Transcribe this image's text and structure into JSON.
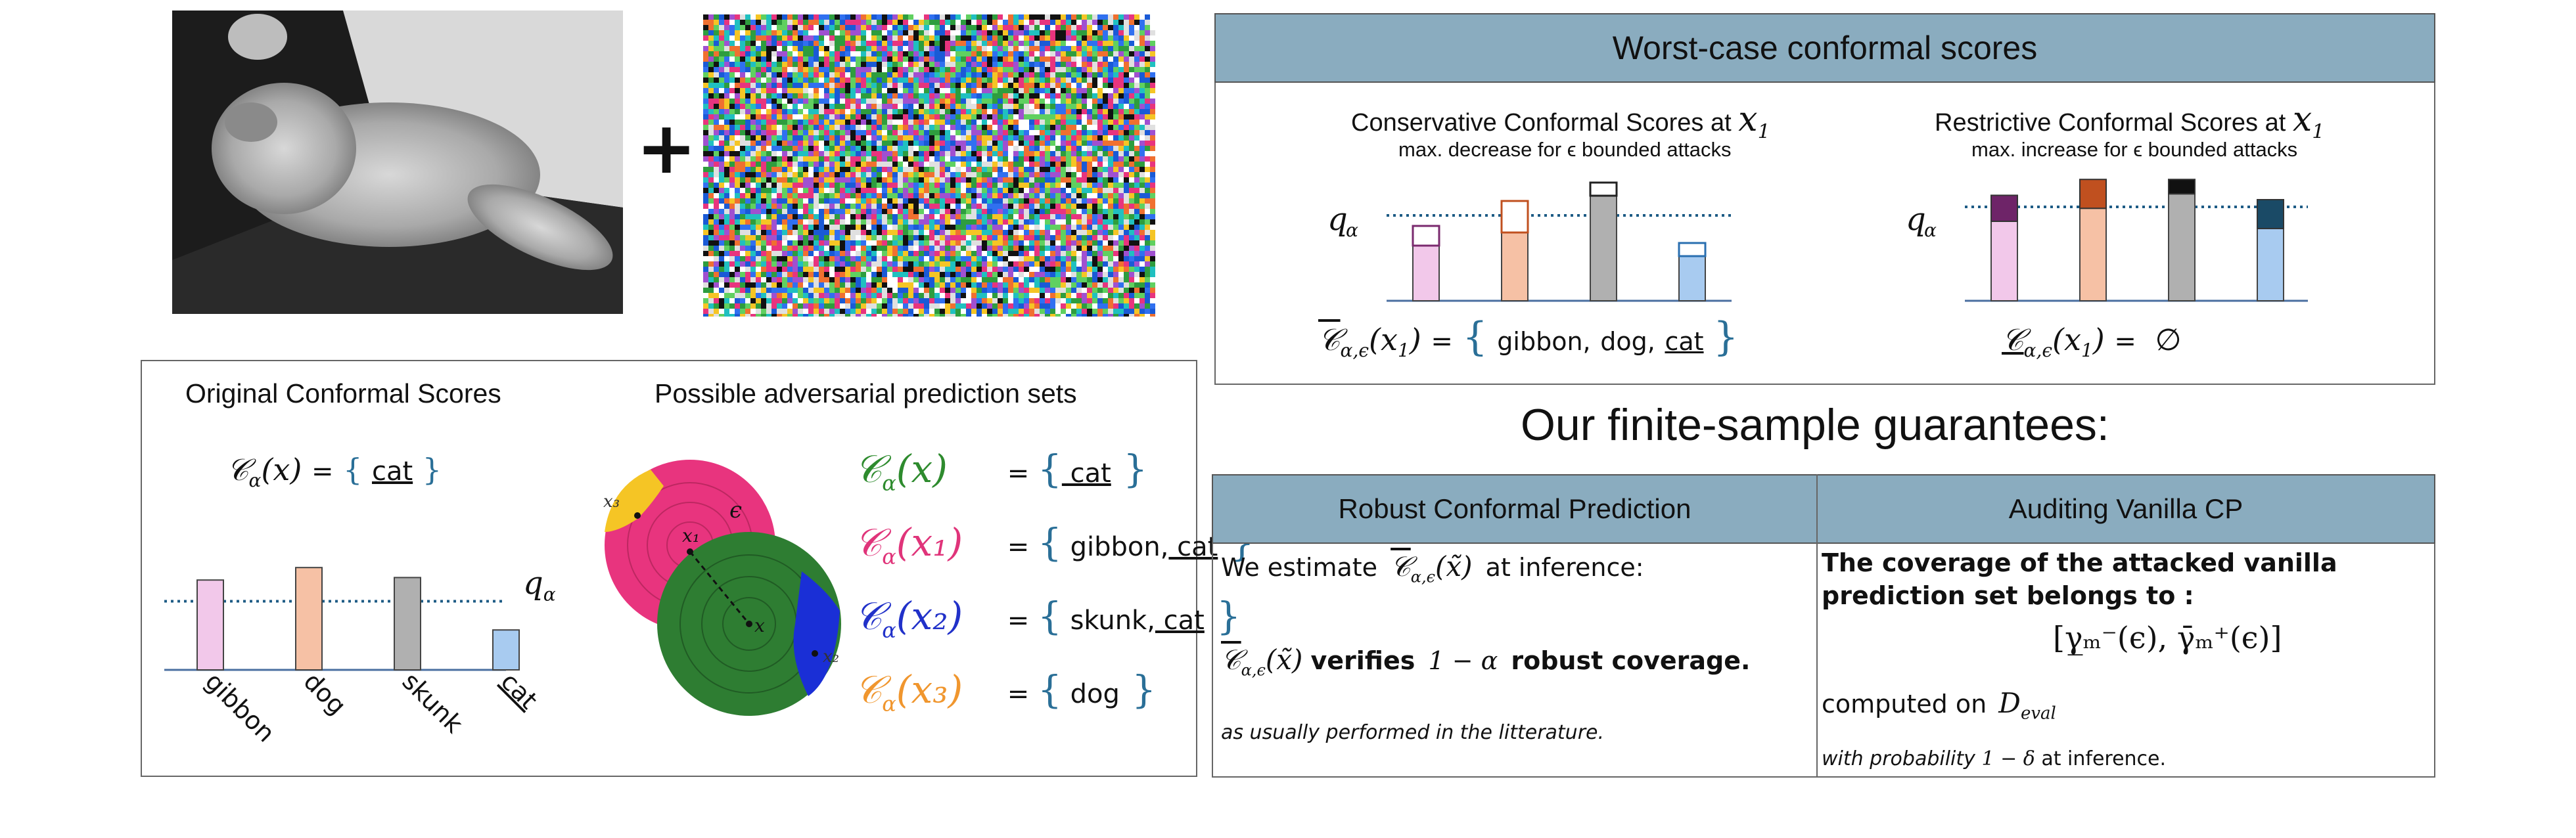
{
  "plus_sign": "+",
  "left_panel": {
    "original_title": "Original Conformal Scores",
    "set_equals": "=",
    "set_label": "cat",
    "q_label": "q",
    "q_sub": "α",
    "bars": [
      {
        "label": "gibbon",
        "score": 0.72,
        "color": "#f2c8ea"
      },
      {
        "label": "dog",
        "score": 0.82,
        "color": "#f6c1a5"
      },
      {
        "label": "skunk",
        "score": 0.74,
        "color": "#b0b0b0"
      },
      {
        "label": "cat",
        "score": 0.32,
        "color": "#a8cbf0"
      }
    ],
    "threshold": 0.55,
    "adv_title": "Possible adversarial prediction sets",
    "adv_sets": [
      {
        "sym": "C",
        "sub": "α",
        "arg": "(x)",
        "color": "#2e8b2e",
        "items": [
          "cat"
        ],
        "underlined": [
          "cat"
        ]
      },
      {
        "sym": "C",
        "sub": "α",
        "arg": "(x₁)",
        "color": "#e0347a",
        "items": [
          "gibbon,",
          "cat"
        ],
        "underlined": [
          "cat"
        ]
      },
      {
        "sym": "C",
        "sub": "α",
        "arg": "(x₂)",
        "color": "#2131c9",
        "items": [
          "skunk,",
          "cat"
        ],
        "underlined": [
          "cat"
        ]
      },
      {
        "sym": "C",
        "sub": "α",
        "arg": "(x₃)",
        "color": "#f0962e",
        "items": [
          "dog"
        ],
        "underlined": []
      }
    ],
    "diagram_labels": {
      "x": "x",
      "x1": "x₁",
      "x2": "x₂",
      "x3": "x₃",
      "eps": "ϵ"
    }
  },
  "worst_case": {
    "title": "Worst-case conformal scores",
    "conservative": {
      "title": "Conservative Conformal Scores at",
      "subtitle": "max. decrease for ϵ bounded attacks",
      "set_items": [
        "gibbon,",
        "dog,",
        "cat"
      ],
      "bars": [
        {
          "base": 0.42,
          "delta": 0.15,
          "color": "#f2c8ea",
          "edge": "#7a2a6e"
        },
        {
          "base": 0.52,
          "delta": 0.24,
          "color": "#f6c1a5",
          "edge": "#c0501f"
        },
        {
          "base": 0.8,
          "delta": 0.1,
          "color": "#b0b0b0",
          "edge": "#222222"
        },
        {
          "base": 0.34,
          "delta": 0.1,
          "color": "#a8cbf0",
          "edge": "#2a6fb0"
        }
      ]
    },
    "restrictive": {
      "title": "Restrictive Conformal Scores at",
      "subtitle": "max. increase for ϵ bounded attacks",
      "empty_set": "∅",
      "bars": [
        {
          "base": 0.55,
          "delta": 0.18,
          "color": "#f2c8ea",
          "cap": "#6e2468"
        },
        {
          "base": 0.64,
          "delta": 0.2,
          "color": "#f6c1a5",
          "cap": "#c0501f"
        },
        {
          "base": 0.74,
          "delta": 0.1,
          "color": "#b0b0b0",
          "cap": "#111111"
        },
        {
          "base": 0.5,
          "delta": 0.2,
          "color": "#a8cbf0",
          "cap": "#1a4a66"
        }
      ],
      "threshold": 0.65
    }
  },
  "guarantees": {
    "title": "Our finite-sample guarantees:",
    "robust": {
      "header": "Robust Conformal Prediction",
      "line1_pre": "We estimate",
      "line1_post": "at inference:",
      "line2_verifies": "verifies",
      "line2_alpha": "1 − α",
      "line2_post": "robust coverage.",
      "footnote": "as usually performed in the litterature."
    },
    "auditing": {
      "header": "Auditing Vanilla CP",
      "bold_text": "The coverage of the attacked vanilla prediction set belongs to :",
      "interval": "[γ̲ₘ⁻(ϵ), γ̄ₘ⁺(ϵ)]",
      "computed_on": "computed on",
      "dataset": "D",
      "dataset_sub": "eval",
      "footnote_pre": "with probability",
      "footnote_prob": "1 − δ",
      "footnote_post": "at inference."
    }
  }
}
